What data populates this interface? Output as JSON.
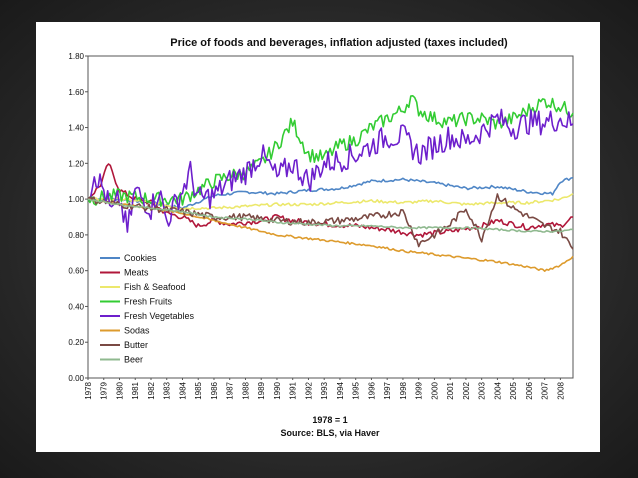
{
  "chart_data": {
    "type": "line",
    "title": "Price of foods and beverages, inflation adjusted (taxes included)",
    "xlabel": "1978 = 1",
    "source": "Source: BLS, via Haver",
    "ylim": [
      0,
      1.8
    ],
    "xlim": [
      1978,
      2008.8
    ],
    "y_ticks": [
      "0.00",
      "0.20",
      "0.40",
      "0.60",
      "0.80",
      "1.00",
      "1.20",
      "1.40",
      "1.60",
      "1.80"
    ],
    "x_ticks": [
      "1978",
      "1979",
      "1980",
      "1981",
      "1982",
      "1983",
      "1984",
      "1985",
      "1986",
      "1987",
      "1988",
      "1989",
      "1990",
      "1991",
      "1992",
      "1993",
      "1994",
      "1995",
      "1996",
      "1997",
      "1998",
      "1999",
      "2000",
      "2001",
      "2002",
      "2003",
      "2004",
      "2005",
      "2006",
      "2007",
      "2008"
    ],
    "grid": false,
    "legend_position": "bottom-left",
    "series": [
      {
        "name": "Cookies",
        "color": "#4f86c6",
        "points": [
          [
            1978,
            1.0
          ],
          [
            1980,
            1.0
          ],
          [
            1982,
            0.98
          ],
          [
            1984,
            0.95
          ],
          [
            1986,
            1.02
          ],
          [
            1988,
            1.04
          ],
          [
            1990,
            1.03
          ],
          [
            1992,
            1.05
          ],
          [
            1994,
            1.06
          ],
          [
            1996,
            1.1
          ],
          [
            1998,
            1.11
          ],
          [
            2000,
            1.09
          ],
          [
            2002,
            1.06
          ],
          [
            2004,
            1.07
          ],
          [
            2006,
            1.04
          ],
          [
            2007.5,
            1.03
          ],
          [
            2008,
            1.1
          ],
          [
            2008.8,
            1.12
          ]
        ]
      },
      {
        "name": "Meats",
        "color": "#b0173a",
        "points": [
          [
            1978,
            1.0
          ],
          [
            1978.8,
            1.08
          ],
          [
            1979.3,
            1.2
          ],
          [
            1980,
            1.05
          ],
          [
            1981,
            1.0
          ],
          [
            1982,
            0.98
          ],
          [
            1983,
            0.92
          ],
          [
            1984,
            0.9
          ],
          [
            1985,
            0.85
          ],
          [
            1986,
            0.88
          ],
          [
            1987,
            0.86
          ],
          [
            1988,
            0.87
          ],
          [
            1989,
            0.88
          ],
          [
            1990,
            0.9
          ],
          [
            1991,
            0.88
          ],
          [
            1993,
            0.86
          ],
          [
            1995,
            0.85
          ],
          [
            1997,
            0.83
          ],
          [
            1999,
            0.8
          ],
          [
            2001,
            0.82
          ],
          [
            2003,
            0.85
          ],
          [
            2004,
            0.88
          ],
          [
            2005,
            0.86
          ],
          [
            2006,
            0.84
          ],
          [
            2007,
            0.86
          ],
          [
            2008,
            0.85
          ],
          [
            2008.8,
            0.9
          ]
        ]
      },
      {
        "name": "Fish & Seafood",
        "color": "#ece86c",
        "points": [
          [
            1978,
            1.0
          ],
          [
            1980,
            1.0
          ],
          [
            1982,
            0.98
          ],
          [
            1984,
            0.95
          ],
          [
            1986,
            0.95
          ],
          [
            1988,
            0.96
          ],
          [
            1990,
            0.97
          ],
          [
            1992,
            0.97
          ],
          [
            1994,
            0.98
          ],
          [
            1996,
            0.99
          ],
          [
            1998,
            0.98
          ],
          [
            2000,
            0.99
          ],
          [
            2002,
            0.97
          ],
          [
            2004,
            0.98
          ],
          [
            2006,
            0.98
          ],
          [
            2008,
            1.0
          ],
          [
            2008.8,
            1.03
          ]
        ]
      },
      {
        "name": "Fresh Fruits",
        "color": "#33cc33",
        "points": [
          [
            1978,
            1.0
          ],
          [
            1980,
            1.02
          ],
          [
            1982,
            1.0
          ],
          [
            1984,
            1.0
          ],
          [
            1985,
            1.05
          ],
          [
            1986,
            1.1
          ],
          [
            1987,
            1.13
          ],
          [
            1988,
            1.15
          ],
          [
            1989,
            1.2
          ],
          [
            1990,
            1.3
          ],
          [
            1991,
            1.43
          ],
          [
            1992,
            1.25
          ],
          [
            1993,
            1.23
          ],
          [
            1994,
            1.3
          ],
          [
            1995,
            1.33
          ],
          [
            1996,
            1.4
          ],
          [
            1997,
            1.45
          ],
          [
            1998,
            1.5
          ],
          [
            1998.5,
            1.57
          ],
          [
            1999,
            1.5
          ],
          [
            2000,
            1.45
          ],
          [
            2001,
            1.43
          ],
          [
            2002,
            1.45
          ],
          [
            2003,
            1.45
          ],
          [
            2004,
            1.42
          ],
          [
            2005,
            1.45
          ],
          [
            2006,
            1.5
          ],
          [
            2007,
            1.55
          ],
          [
            2008,
            1.52
          ],
          [
            2008.8,
            1.48
          ]
        ]
      },
      {
        "name": "Fresh Vegetables",
        "color": "#6d1fcc",
        "points": [
          [
            1978,
            1.0
          ],
          [
            1978.4,
            1.15
          ],
          [
            1979,
            1.05
          ],
          [
            1979.5,
            0.92
          ],
          [
            1980,
            1.0
          ],
          [
            1980.5,
            0.82
          ],
          [
            1981,
            1.05
          ],
          [
            1982,
            0.95
          ],
          [
            1982.5,
            1.05
          ],
          [
            1983,
            0.88
          ],
          [
            1984,
            1.05
          ],
          [
            1984.5,
            1.15
          ],
          [
            1985,
            1.0
          ],
          [
            1986,
            1.02
          ],
          [
            1987,
            1.1
          ],
          [
            1988,
            1.15
          ],
          [
            1989,
            1.25
          ],
          [
            1990,
            1.12
          ],
          [
            1991,
            1.2
          ],
          [
            1992,
            1.1
          ],
          [
            1993,
            1.2
          ],
          [
            1994,
            1.22
          ],
          [
            1995,
            1.25
          ],
          [
            1996,
            1.3
          ],
          [
            1997,
            1.35
          ],
          [
            1998,
            1.35
          ],
          [
            1999,
            1.25
          ],
          [
            2000,
            1.3
          ],
          [
            2001,
            1.35
          ],
          [
            2002,
            1.32
          ],
          [
            2003,
            1.38
          ],
          [
            2004,
            1.45
          ],
          [
            2005,
            1.4
          ],
          [
            2006,
            1.43
          ],
          [
            2007,
            1.43
          ],
          [
            2008,
            1.45
          ],
          [
            2008.8,
            1.42
          ]
        ]
      },
      {
        "name": "Sodas",
        "color": "#dd9b2d",
        "points": [
          [
            1978,
            1.0
          ],
          [
            1980,
            0.97
          ],
          [
            1982,
            0.95
          ],
          [
            1984,
            0.92
          ],
          [
            1986,
            0.88
          ],
          [
            1988,
            0.84
          ],
          [
            1990,
            0.8
          ],
          [
            1992,
            0.78
          ],
          [
            1994,
            0.76
          ],
          [
            1996,
            0.74
          ],
          [
            1998,
            0.71
          ],
          [
            2000,
            0.69
          ],
          [
            2002,
            0.67
          ],
          [
            2004,
            0.65
          ],
          [
            2006,
            0.62
          ],
          [
            2007,
            0.6
          ],
          [
            2008,
            0.63
          ],
          [
            2008.8,
            0.68
          ]
        ]
      },
      {
        "name": "Butter",
        "color": "#7a4a44",
        "points": [
          [
            1978,
            1.0
          ],
          [
            1980,
            0.97
          ],
          [
            1982,
            0.95
          ],
          [
            1984,
            0.93
          ],
          [
            1986,
            0.9
          ],
          [
            1988,
            0.9
          ],
          [
            1990,
            0.88
          ],
          [
            1992,
            0.87
          ],
          [
            1994,
            0.88
          ],
          [
            1996,
            0.9
          ],
          [
            1998,
            0.93
          ],
          [
            1999,
            0.75
          ],
          [
            2000,
            0.8
          ],
          [
            2001,
            0.86
          ],
          [
            2002,
            0.95
          ],
          [
            2003,
            0.78
          ],
          [
            2004,
            1.02
          ],
          [
            2005,
            0.95
          ],
          [
            2006,
            0.9
          ],
          [
            2007,
            0.85
          ],
          [
            2008,
            0.82
          ],
          [
            2008.8,
            0.72
          ]
        ]
      },
      {
        "name": "Beer",
        "color": "#8fb98f",
        "points": [
          [
            1978,
            1.0
          ],
          [
            1980,
            0.97
          ],
          [
            1982,
            0.95
          ],
          [
            1984,
            0.93
          ],
          [
            1986,
            0.9
          ],
          [
            1988,
            0.89
          ],
          [
            1990,
            0.87
          ],
          [
            1992,
            0.86
          ],
          [
            1994,
            0.85
          ],
          [
            1996,
            0.85
          ],
          [
            1998,
            0.84
          ],
          [
            2000,
            0.84
          ],
          [
            2002,
            0.84
          ],
          [
            2004,
            0.83
          ],
          [
            2006,
            0.82
          ],
          [
            2008,
            0.82
          ],
          [
            2008.8,
            0.83
          ]
        ]
      }
    ]
  }
}
